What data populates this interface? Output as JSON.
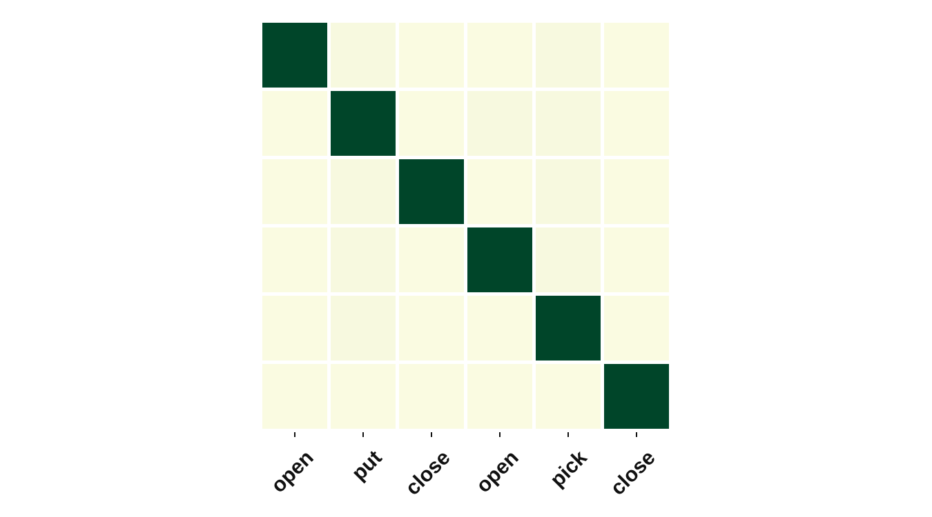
{
  "chart_data": {
    "type": "heatmap",
    "x_categories": [
      "open",
      "put",
      "close",
      "open",
      "pick",
      "close"
    ],
    "y_categories": [],
    "values": [
      [
        1.0,
        0.03,
        0.02,
        0.02,
        0.03,
        0.02
      ],
      [
        0.02,
        1.0,
        0.02,
        0.03,
        0.03,
        0.02
      ],
      [
        0.02,
        0.03,
        1.0,
        0.02,
        0.03,
        0.02
      ],
      [
        0.02,
        0.03,
        0.02,
        1.0,
        0.03,
        0.02
      ],
      [
        0.02,
        0.03,
        0.02,
        0.02,
        1.0,
        0.02
      ],
      [
        0.02,
        0.02,
        0.02,
        0.02,
        0.02,
        1.0
      ]
    ],
    "value_range": [
      0,
      1
    ],
    "colormap": {
      "low": "#ffffe5",
      "high": "#004529"
    },
    "grid": false,
    "legend": "none",
    "title": "",
    "xlabel": "",
    "ylabel": ""
  }
}
